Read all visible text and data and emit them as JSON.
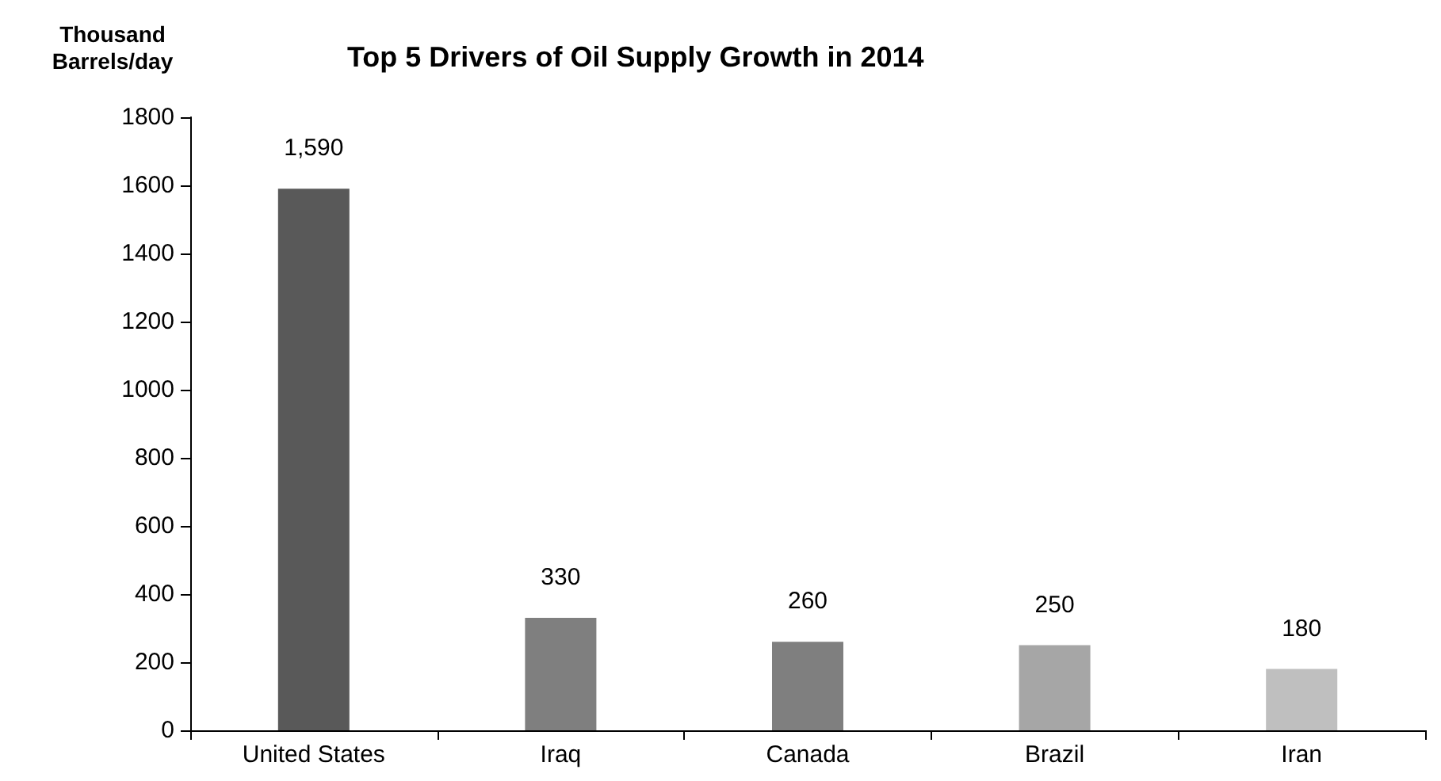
{
  "chart_data": {
    "type": "bar",
    "title": "Top 5 Drivers of Oil Supply Growth in 2014",
    "ylabel": "Thousand\nBarrels/day",
    "categories": [
      "United States",
      "Iraq",
      "Canada",
      "Brazil",
      "Iran"
    ],
    "values": [
      1590,
      330,
      260,
      250,
      180
    ],
    "colors": [
      "#595959",
      "#7f7f7f",
      "#7f7f7f",
      "#a6a6a6",
      "#bfbfbf"
    ],
    "value_labels": [
      "1,590",
      "330",
      "260",
      "250",
      "180"
    ],
    "ylim": [
      0,
      1800
    ],
    "yticks": [
      0,
      200,
      400,
      600,
      800,
      1000,
      1200,
      1400,
      1600,
      1800
    ],
    "grid": false
  }
}
